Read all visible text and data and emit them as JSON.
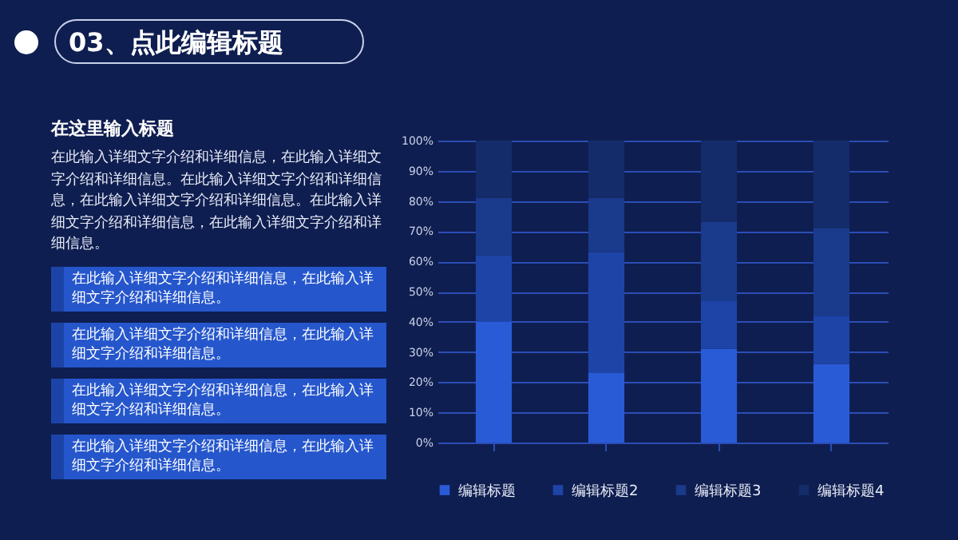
{
  "chart_data": {
    "type": "bar",
    "title": "03、点此编辑标题",
    "annotations": [
      "在这里输入标题",
      "在此输入详细文字介绍和详细信息，在此输入详细文字介绍和详细信息。在此输入详细文字介绍和详细信息，在此输入详细文字介绍和详细信息。在此输入详细文字介绍和详细信息，在此输入详细文字介绍和详细信息。",
      "在此输入详细文字介绍和详细信息，在此输入详细文字介绍和详细信息。",
      "在此输入详细文字介绍和详细信息，在此输入详细文字介绍和详细信息。",
      "在此输入详细文字介绍和详细信息，在此输入详细文字介绍和详细信息。",
      "在此输入详细文字介绍和详细信息，在此输入详细文字介绍和详细信息。"
    ],
    "categories": [
      null,
      null,
      null,
      null
    ],
    "stacked": true,
    "series": [
      {
        "name": "编辑标题",
        "color": "#2a5bd7",
        "values": [
          40,
          23,
          31,
          26
        ]
      },
      {
        "name": "编辑标题2",
        "color": "#1e44a8",
        "values": [
          22,
          40,
          16,
          16
        ]
      },
      {
        "name": "编辑标题3",
        "color": "#1a3a8c",
        "values": [
          19,
          18,
          26,
          29
        ]
      },
      {
        "name": "编辑标题4",
        "color": "#142c6a",
        "values": [
          19,
          19,
          27,
          29
        ]
      }
    ],
    "ylim": [
      0,
      100
    ],
    "yticks": [
      {
        "value": 0,
        "label": "0%"
      },
      {
        "value": 10,
        "label": "10%"
      },
      {
        "value": 20,
        "label": "20%"
      },
      {
        "value": 30,
        "label": "30%"
      },
      {
        "value": 40,
        "label": "40%"
      },
      {
        "value": 50,
        "label": "50%"
      },
      {
        "value": 60,
        "label": "60%"
      },
      {
        "value": 70,
        "label": "70%"
      },
      {
        "value": 80,
        "label": "80%"
      },
      {
        "value": 90,
        "label": "90%"
      },
      {
        "value": 100,
        "label": "100%"
      }
    ],
    "grid": "y",
    "legend": "bottom"
  }
}
